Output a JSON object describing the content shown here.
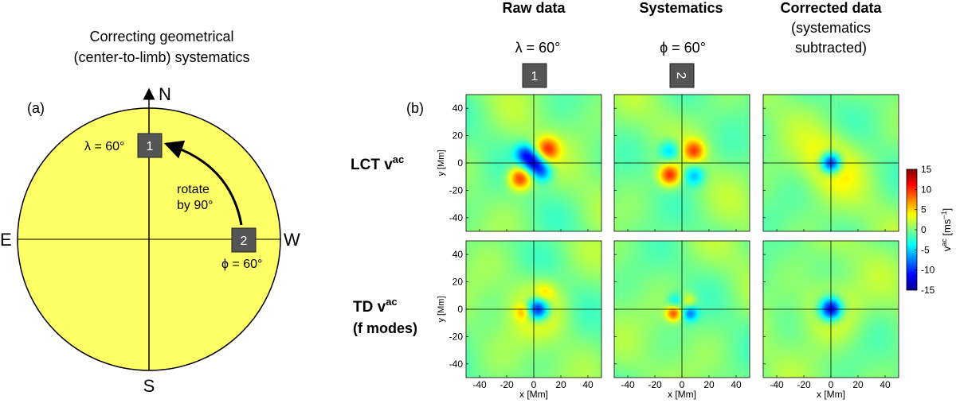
{
  "left_panel": {
    "title_line1": "Correcting geometrical",
    "title_line2": "(center-to-limb) systematics",
    "panel_label": "(a)",
    "north": "N",
    "south": "S",
    "east": "E",
    "west": "W",
    "box1_number": "1",
    "box2_number": "2",
    "lambda_label": "λ = 60°",
    "phi_label": "ϕ = 60°",
    "rotate_line1": "rotate",
    "rotate_line2": "by 90°",
    "disk_color": "#ffff66"
  },
  "right_panel": {
    "panel_label": "(b)",
    "col_headers": {
      "raw": "Raw data",
      "systematics": "Systematics",
      "corrected_line1": "Corrected data",
      "corrected_line2": "(systematics",
      "corrected_line3": "subtracted)"
    },
    "lambda_label": "λ = 60°",
    "phi_label": "ϕ = 60°",
    "box1_number": "1",
    "box2_number": "2",
    "row_labels": {
      "lct_prefix": "LCT  v",
      "lct_sup": "ac",
      "td_prefix": "TD  v",
      "td_sup": "ac",
      "td_line2": "(f modes)"
    },
    "axes": {
      "xlabel": "x [Mm]",
      "ylabel": "y [Mm]",
      "x_ticks": [
        "-40",
        "-20",
        "0",
        "20",
        "40"
      ],
      "y_ticks": [
        "40",
        "20",
        "0",
        "-20",
        "-40"
      ],
      "range_min": -50,
      "range_max": 50
    },
    "colorbar": {
      "ticks": [
        "15",
        "10",
        "5",
        "0",
        "-5",
        "-10",
        "-15"
      ],
      "min": -15,
      "max": 15,
      "label_prefix": "v",
      "label_sup": "ac",
      "label_unit": " [ms",
      "label_unit_sup": "−1",
      "label_close": "]"
    }
  },
  "chart_data": {
    "type": "heatmap",
    "title": "Correcting geometrical (center-to-limb) systematics",
    "xlabel": "x [Mm]",
    "ylabel": "y [Mm]",
    "xlim": [
      -50,
      50
    ],
    "ylim": [
      -50,
      50
    ],
    "colorbar": {
      "label": "v^ac [ms^-1]",
      "range": [
        -15,
        15
      ]
    },
    "rows": [
      "LCT v^ac",
      "TD v^ac (f modes)"
    ],
    "columns": [
      "Raw data",
      "Systematics",
      "Corrected data (systematics subtracted)"
    ],
    "panels": [
      {
        "row": "LCT v^ac",
        "column": "Raw data",
        "features": [
          {
            "x": 0,
            "y": 0,
            "sigma": 6,
            "value": -11
          },
          {
            "x": 10,
            "y": 10,
            "sigma": 6,
            "value": 9
          },
          {
            "x": -10,
            "y": -11,
            "sigma": 6,
            "value": 11
          },
          {
            "x": -7,
            "y": 7,
            "sigma": 5,
            "value": -7
          },
          {
            "x": 7,
            "y": -7,
            "sigma": 5,
            "value": -6
          }
        ]
      },
      {
        "row": "LCT v^ac",
        "column": "Systematics",
        "features": [
          {
            "x": 9,
            "y": 9,
            "sigma": 5.5,
            "value": 8
          },
          {
            "x": -9,
            "y": -9,
            "sigma": 5.5,
            "value": 10
          },
          {
            "x": -9,
            "y": 9,
            "sigma": 5.5,
            "value": -6
          },
          {
            "x": 9,
            "y": -9,
            "sigma": 5.5,
            "value": -6
          }
        ]
      },
      {
        "row": "LCT v^ac",
        "column": "Corrected data (systematics subtracted)",
        "features": [
          {
            "x": 0,
            "y": 0,
            "sigma": 5.5,
            "value": -14
          },
          {
            "x": 0,
            "y": 0,
            "sigma": 15,
            "value": 4
          }
        ]
      },
      {
        "row": "TD v^ac (f modes)",
        "column": "Raw data",
        "features": [
          {
            "x": 3,
            "y": 0,
            "sigma": 6,
            "value": -15
          },
          {
            "x": 4,
            "y": 0,
            "sigma": 14,
            "value": 4
          },
          {
            "x": 8,
            "y": 12,
            "sigma": 5,
            "value": 3
          },
          {
            "x": -8,
            "y": -2,
            "sigma": 4,
            "value": 4
          }
        ]
      },
      {
        "row": "TD v^ac (f modes)",
        "column": "Systematics",
        "features": [
          {
            "x": -6,
            "y": -3,
            "sigma": 4,
            "value": 9
          },
          {
            "x": 6,
            "y": -3,
            "sigma": 4,
            "value": -7
          },
          {
            "x": -5,
            "y": 6,
            "sigma": 4,
            "value": -4
          },
          {
            "x": 5,
            "y": 6,
            "sigma": 4,
            "value": 4
          }
        ]
      },
      {
        "row": "TD v^ac (f modes)",
        "column": "Corrected data (systematics subtracted)",
        "features": [
          {
            "x": 0,
            "y": 0,
            "sigma": 6,
            "value": -15
          },
          {
            "x": 0,
            "y": 0,
            "sigma": 15,
            "value": 4
          }
        ]
      }
    ]
  }
}
